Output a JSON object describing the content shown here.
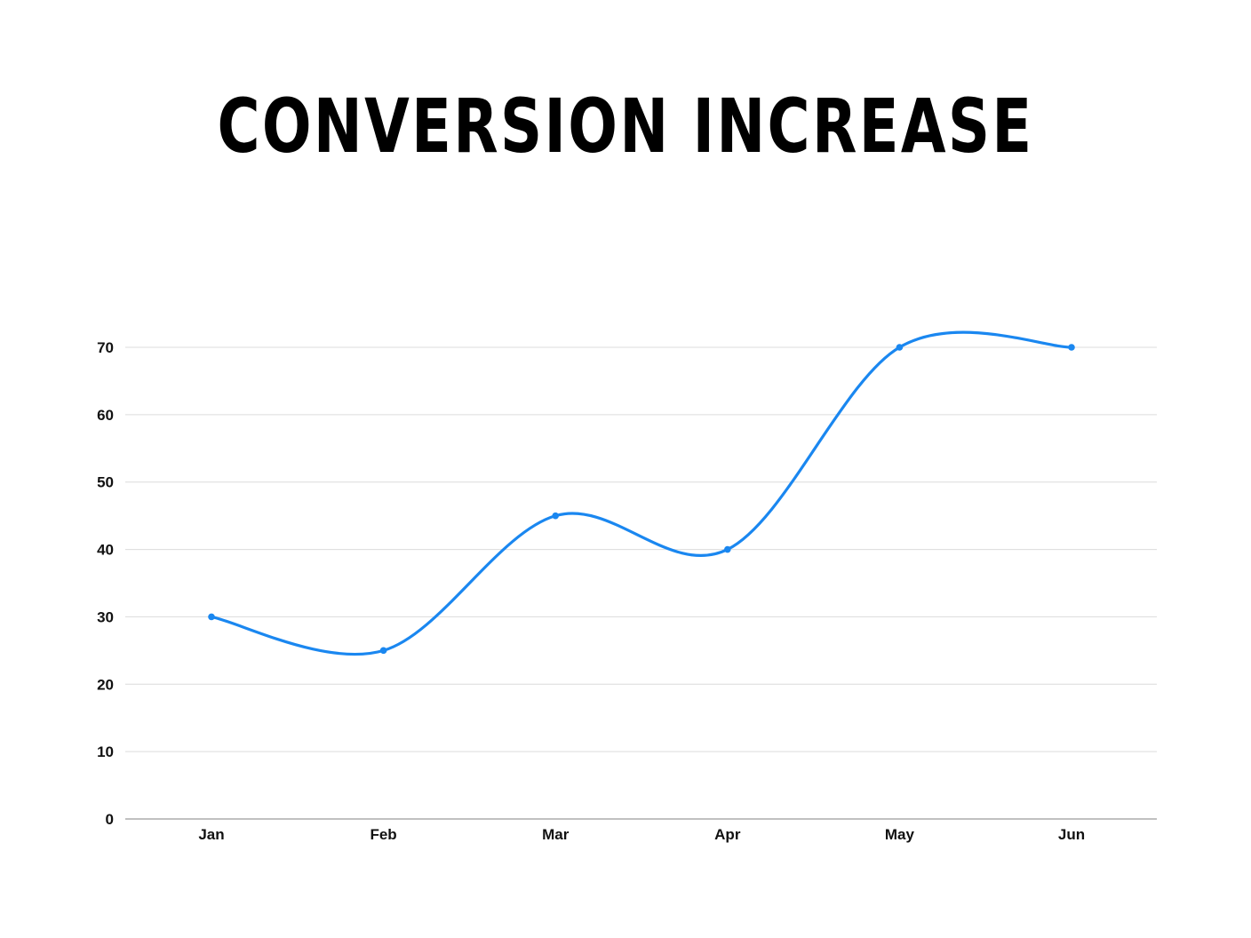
{
  "chart_data": {
    "type": "line",
    "title": "CONVERSION INCREASE",
    "categories": [
      "Jan",
      "Feb",
      "Mar",
      "Apr",
      "May",
      "Jun"
    ],
    "series": [
      {
        "values": [
          30,
          25,
          45,
          40,
          70,
          70
        ]
      }
    ],
    "ylim": [
      0,
      70
    ],
    "yticks": [
      0,
      10,
      20,
      30,
      40,
      50,
      60,
      70
    ],
    "xlabel": "",
    "ylabel": "",
    "grid": true,
    "smooth": true,
    "line_color": "#1a87f0",
    "grid_color": "#dcdcdc",
    "axis_color": "#9a9a9a"
  }
}
